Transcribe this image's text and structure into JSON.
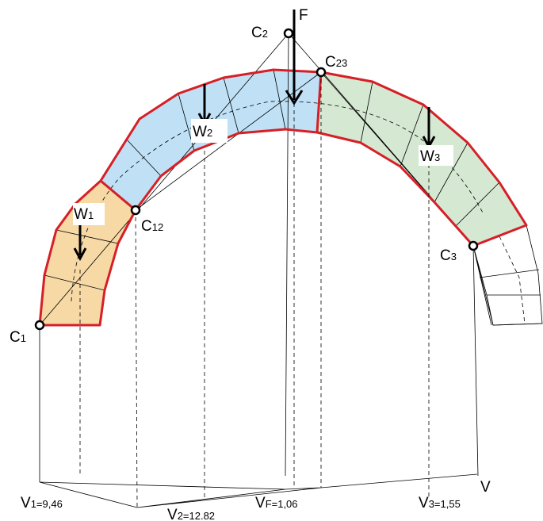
{
  "colors": {
    "block1": "#f7d9a6",
    "block2": "#bfe0f5",
    "block3": "#d5e8d2",
    "outline": "#d61f26"
  },
  "labels": {
    "F": "F",
    "C1": {
      "main": "C",
      "sub": "1"
    },
    "C2": {
      "main": "C",
      "sub": "2"
    },
    "C3": {
      "main": "C",
      "sub": "3"
    },
    "C12": {
      "main": "C",
      "sub": "12"
    },
    "C23": {
      "main": "C",
      "sub": "23"
    },
    "W1": {
      "main": "W",
      "sub": "1"
    },
    "W2": {
      "main": "W",
      "sub": "2"
    },
    "W3": {
      "main": "W",
      "sub": "3"
    },
    "V1": {
      "main": "V",
      "sub": "1=9,46"
    },
    "V2": {
      "main": "V",
      "sub": "2=12.82"
    },
    "VF": {
      "main": "V",
      "sub": "F=1,06"
    },
    "V3": {
      "main": "V",
      "sub": "3=1,55"
    },
    "V": "V"
  }
}
